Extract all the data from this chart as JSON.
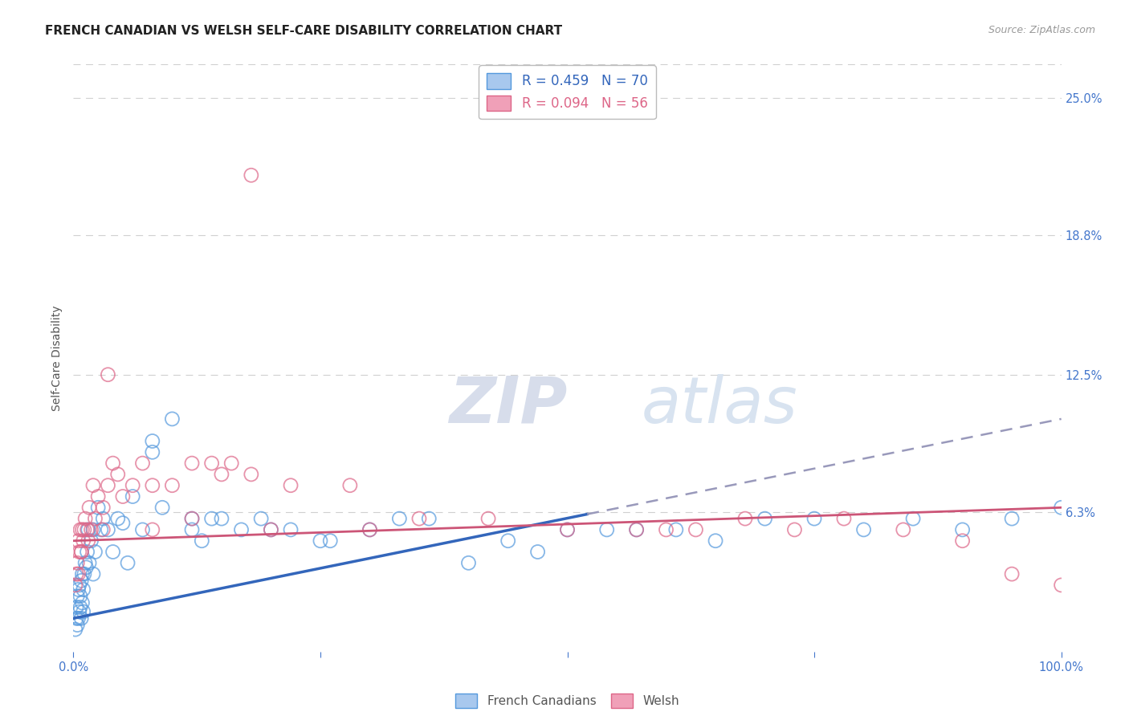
{
  "title": "FRENCH CANADIAN VS WELSH SELF-CARE DISABILITY CORRELATION CHART",
  "source": "Source: ZipAtlas.com",
  "ylabel": "Self-Care Disability",
  "xlim": [
    0,
    100
  ],
  "ylim": [
    0,
    26.5
  ],
  "ytick_vals": [
    6.3,
    12.5,
    18.8,
    25.0
  ],
  "ytick_labels": [
    "6.3%",
    "12.5%",
    "18.8%",
    "25.0%"
  ],
  "grid_color": "#d0d0d0",
  "background_color": "#ffffff",
  "blue_color": "#A8C8EE",
  "pink_color": "#F0A0B8",
  "blue_edge_color": "#5599DD",
  "pink_edge_color": "#DD6688",
  "blue_line_color": "#3366BB",
  "pink_line_color": "#CC5577",
  "blue_dash_color": "#9999BB",
  "legend_R_blue": "R = 0.459",
  "legend_N_blue": "N = 70",
  "legend_R_pink": "R = 0.094",
  "legend_N_pink": "N = 56",
  "tick_color": "#4477CC",
  "watermark_zip": "ZIP",
  "watermark_atlas": "atlas",
  "blue_scatter_x": [
    0.2,
    0.3,
    0.3,
    0.4,
    0.4,
    0.5,
    0.5,
    0.6,
    0.6,
    0.7,
    0.7,
    0.8,
    0.8,
    0.9,
    0.9,
    1.0,
    1.0,
    1.1,
    1.2,
    1.3,
    1.4,
    1.5,
    1.6,
    1.8,
    2.0,
    2.0,
    2.2,
    2.5,
    2.8,
    3.0,
    3.5,
    4.0,
    4.5,
    5.0,
    5.5,
    6.0,
    7.0,
    8.0,
    9.0,
    10.0,
    12.0,
    13.0,
    14.0,
    15.0,
    17.0,
    19.0,
    22.0,
    26.0,
    30.0,
    33.0,
    36.0,
    40.0,
    44.0,
    47.0,
    50.0,
    54.0,
    57.0,
    61.0,
    65.0,
    70.0,
    75.0,
    80.0,
    85.0,
    90.0,
    95.0,
    100.0,
    12.0,
    20.0,
    25.0,
    8.0
  ],
  "blue_scatter_y": [
    1.0,
    1.5,
    2.0,
    1.2,
    2.5,
    1.5,
    2.8,
    1.8,
    3.0,
    2.0,
    2.5,
    1.5,
    3.2,
    2.2,
    3.5,
    1.8,
    2.8,
    3.5,
    4.0,
    3.8,
    4.5,
    5.5,
    4.0,
    5.0,
    3.5,
    5.5,
    4.5,
    6.5,
    5.5,
    6.0,
    5.5,
    4.5,
    6.0,
    5.8,
    4.0,
    7.0,
    5.5,
    9.5,
    6.5,
    10.5,
    6.0,
    5.0,
    6.0,
    6.0,
    5.5,
    6.0,
    5.5,
    5.0,
    5.5,
    6.0,
    6.0,
    4.0,
    5.0,
    4.5,
    5.5,
    5.5,
    5.5,
    5.5,
    5.0,
    6.0,
    6.0,
    5.5,
    6.0,
    5.5,
    6.0,
    6.5,
    5.5,
    5.5,
    5.0,
    9.0
  ],
  "pink_scatter_x": [
    0.2,
    0.3,
    0.4,
    0.5,
    0.5,
    0.6,
    0.7,
    0.8,
    0.9,
    1.0,
    1.1,
    1.2,
    1.4,
    1.6,
    1.8,
    2.0,
    2.2,
    2.5,
    3.0,
    3.5,
    4.0,
    4.5,
    5.0,
    6.0,
    7.0,
    8.0,
    10.0,
    12.0,
    14.0,
    16.0,
    18.0,
    3.5,
    15.0,
    18.0,
    22.0,
    28.0,
    35.0,
    42.0,
    50.0,
    57.0,
    63.0,
    68.0,
    73.0,
    78.0,
    84.0,
    90.0,
    95.0,
    100.0,
    0.8,
    1.5,
    3.0,
    8.0,
    12.0,
    20.0,
    30.0,
    60.0
  ],
  "pink_scatter_y": [
    3.0,
    3.5,
    4.0,
    3.5,
    5.0,
    4.5,
    5.5,
    4.5,
    5.5,
    5.0,
    5.5,
    6.0,
    5.5,
    6.5,
    5.5,
    7.5,
    6.0,
    7.0,
    6.5,
    7.5,
    8.5,
    8.0,
    7.0,
    7.5,
    8.5,
    7.5,
    7.5,
    8.5,
    8.5,
    8.5,
    21.5,
    12.5,
    8.0,
    8.0,
    7.5,
    7.5,
    6.0,
    6.0,
    5.5,
    5.5,
    5.5,
    6.0,
    5.5,
    6.0,
    5.5,
    5.0,
    3.5,
    3.0,
    4.5,
    5.0,
    5.5,
    5.5,
    6.0,
    5.5,
    5.5,
    5.5
  ],
  "blue_line_x0": 0,
  "blue_line_y0": 1.5,
  "blue_line_x1": 52,
  "blue_line_y1": 6.2,
  "blue_dash_x0": 52,
  "blue_dash_y0": 6.2,
  "blue_dash_x1": 100,
  "blue_dash_y1": 10.5,
  "pink_line_y0": 5.0,
  "pink_line_y1": 6.5
}
